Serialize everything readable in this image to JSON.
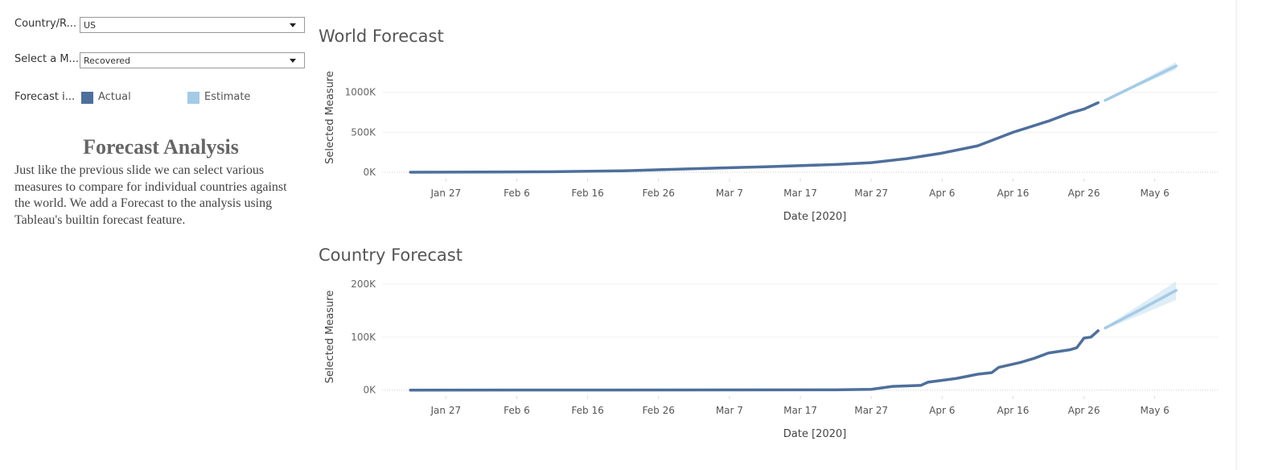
{
  "filters": [
    {
      "label": "Country/R...",
      "value": "US"
    },
    {
      "label": "Select a M...",
      "value": "Recovered"
    }
  ],
  "legend": {
    "label": "Forecast i...",
    "items": [
      {
        "name": "Actual",
        "color": "#4e6f9b"
      },
      {
        "name": "Estimate",
        "color": "#a3cbe6"
      }
    ]
  },
  "text": {
    "title": "Forecast Analysis",
    "body": "Just like the previous slide we can select various measures to compare for individual countries against the world. We add a Forecast to the analysis using Tableau's builtin forecast feature."
  },
  "chart_data": [
    {
      "type": "line",
      "title": "World Forecast",
      "x_label": "Date [2020]",
      "y_label": "Selected Measure",
      "xlim": [
        "2020-01-18",
        "2020-05-15"
      ],
      "xticks": [
        {
          "value": "2020-01-27",
          "label": "Jan 27"
        },
        {
          "value": "2020-02-06",
          "label": "Feb 6"
        },
        {
          "value": "2020-02-16",
          "label": "Feb 16"
        },
        {
          "value": "2020-02-26",
          "label": "Feb 26"
        },
        {
          "value": "2020-03-07",
          "label": "Mar 7"
        },
        {
          "value": "2020-03-17",
          "label": "Mar 17"
        },
        {
          "value": "2020-03-27",
          "label": "Mar 27"
        },
        {
          "value": "2020-04-06",
          "label": "Apr 6"
        },
        {
          "value": "2020-04-16",
          "label": "Apr 16"
        },
        {
          "value": "2020-04-26",
          "label": "Apr 26"
        },
        {
          "value": "2020-05-06",
          "label": "May 6"
        }
      ],
      "ylim": [
        -80000,
        1450000
      ],
      "yticks": [
        {
          "value": 0,
          "label": "0K"
        },
        {
          "value": 500000,
          "label": "500K"
        },
        {
          "value": 1000000,
          "label": "1000K"
        }
      ],
      "grid": true,
      "series": [
        {
          "name": "Actual",
          "color": "#4e6f9b",
          "x": [
            "2020-01-22",
            "2020-02-01",
            "2020-02-11",
            "2020-02-21",
            "2020-03-02",
            "2020-03-12",
            "2020-03-22",
            "2020-03-27",
            "2020-04-01",
            "2020-04-06",
            "2020-04-11",
            "2020-04-16",
            "2020-04-21",
            "2020-04-24",
            "2020-04-26",
            "2020-04-28"
          ],
          "values": [
            28,
            3000,
            7000,
            18000,
            45000,
            68000,
            98000,
            120000,
            170000,
            240000,
            330000,
            500000,
            640000,
            740000,
            790000,
            870000
          ]
        },
        {
          "name": "Estimate",
          "color": "#a3cbe6",
          "x": [
            "2020-04-29",
            "2020-05-04",
            "2020-05-09"
          ],
          "values": [
            900000,
            1115000,
            1330000
          ],
          "upper": [
            910000,
            1140000,
            1380000
          ],
          "lower": [
            890000,
            1090000,
            1285000
          ]
        }
      ]
    },
    {
      "type": "line",
      "title": "Country Forecast",
      "x_label": "Date [2020]",
      "y_label": "Selected Measure",
      "xlim": [
        "2020-01-18",
        "2020-05-15"
      ],
      "xticks": [
        {
          "value": "2020-01-27",
          "label": "Jan 27"
        },
        {
          "value": "2020-02-06",
          "label": "Feb 6"
        },
        {
          "value": "2020-02-16",
          "label": "Feb 16"
        },
        {
          "value": "2020-02-26",
          "label": "Feb 26"
        },
        {
          "value": "2020-03-07",
          "label": "Mar 7"
        },
        {
          "value": "2020-03-17",
          "label": "Mar 17"
        },
        {
          "value": "2020-03-27",
          "label": "Mar 27"
        },
        {
          "value": "2020-04-06",
          "label": "Apr 6"
        },
        {
          "value": "2020-04-16",
          "label": "Apr 16"
        },
        {
          "value": "2020-04-26",
          "label": "Apr 26"
        },
        {
          "value": "2020-05-06",
          "label": "May 6"
        }
      ],
      "ylim": [
        -11000,
        212000
      ],
      "yticks": [
        {
          "value": 0,
          "label": "0K"
        },
        {
          "value": 100000,
          "label": "100K"
        },
        {
          "value": 200000,
          "label": "200K"
        }
      ],
      "grid": true,
      "series": [
        {
          "name": "Actual",
          "color": "#4e6f9b",
          "x": [
            "2020-01-22",
            "2020-03-22",
            "2020-03-27",
            "2020-03-30",
            "2020-04-03",
            "2020-04-04",
            "2020-04-08",
            "2020-04-11",
            "2020-04-13",
            "2020-04-14",
            "2020-04-17",
            "2020-04-19",
            "2020-04-21",
            "2020-04-24",
            "2020-04-25",
            "2020-04-26",
            "2020-04-27",
            "2020-04-28"
          ],
          "values": [
            0,
            500,
            1500,
            7000,
            9000,
            15000,
            22000,
            30000,
            33000,
            43000,
            52000,
            60000,
            70000,
            76000,
            80000,
            98000,
            100000,
            112000
          ]
        },
        {
          "name": "Estimate",
          "color": "#a3cbe6",
          "x": [
            "2020-04-29",
            "2020-05-04",
            "2020-05-09"
          ],
          "values": [
            117000,
            152000,
            188000
          ],
          "upper": [
            119000,
            162000,
            205000
          ],
          "lower": [
            115000,
            142000,
            170000
          ]
        }
      ]
    }
  ]
}
